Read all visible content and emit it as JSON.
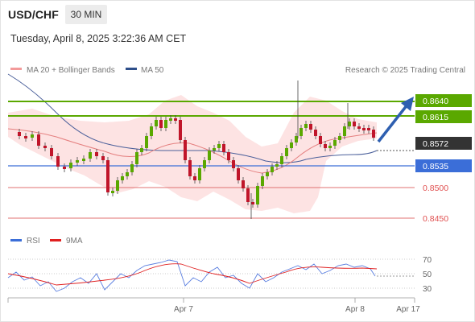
{
  "header": {
    "symbol": "USD/CHF",
    "timeframe": "30 MIN",
    "datetime": "Tuesday, April 8, 2025 3:22:36 AM CET"
  },
  "legend": {
    "ma20": "MA 20 + Bollinger Bands",
    "ma50": "MA 50",
    "copyright": "Research © 2025 Trading Central",
    "rsi": "RSI",
    "rsi_ma": "9MA"
  },
  "colors": {
    "green": "#5aa800",
    "blue": "#3b6ed8",
    "red": "#e07070",
    "dark": "#333333",
    "bollinger": "#fbe0e0",
    "ma50": "#4a5f9a",
    "arrow": "#2e5fb0"
  },
  "price_levels": {
    "r2": "0.8640",
    "r1": "0.8615",
    "current": "0.8572",
    "pivot": "0.8535",
    "s1": "0.8500",
    "s2": "0.8450"
  },
  "rsi_axis": [
    "70",
    "50",
    "30"
  ],
  "x_axis": [
    "Apr 7",
    "Apr 8",
    "Apr 17"
  ]
}
